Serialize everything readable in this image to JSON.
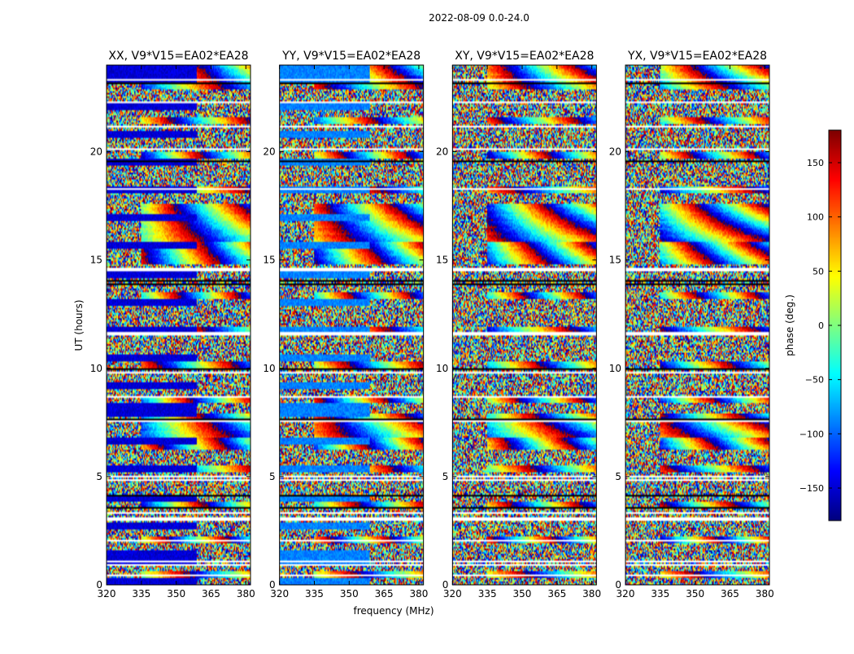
{
  "chart_data": {
    "type": "heatmap",
    "suptitle": "2022-08-09 0.0-24.0",
    "xlabel": "frequency (MHz)",
    "ylabel": "UT (hours)",
    "xlim": [
      320,
      382
    ],
    "ylim": [
      0,
      24
    ],
    "xticks": [
      320,
      335,
      350,
      365,
      380
    ],
    "yticks": [
      0,
      5,
      10,
      15,
      20
    ],
    "panels": [
      {
        "title": "XX, V9*V15=EA02*EA28",
        "polarization": "XX",
        "base_phase": -150
      },
      {
        "title": "YY, V9*V15=EA02*EA28",
        "polarization": "YY",
        "base_phase": -90
      },
      {
        "title": "XY, V9*V15=EA02*EA28",
        "polarization": "XY",
        "base_phase": null
      },
      {
        "title": "YX, V9*V15=EA02*EA28",
        "polarization": "YX",
        "base_phase": null
      }
    ],
    "colorbar": {
      "label": "phase (deg.)",
      "range": [
        -180,
        180
      ],
      "ticks": [
        -150,
        -100,
        -50,
        0,
        50,
        100,
        150
      ],
      "colormap": "jet"
    },
    "blank_rows_hours": [
      0.45,
      0.9,
      1.05,
      2.05,
      3.05,
      3.3,
      4.85,
      5.0,
      7.55,
      8.7,
      9.8,
      11.6,
      14.55,
      18.3,
      20.1,
      21.15,
      22.3,
      23.3
    ],
    "dark_rows_hours": [
      3.55,
      4.1,
      7.65,
      9.95,
      13.9,
      14.05,
      19.55,
      23.15
    ]
  }
}
